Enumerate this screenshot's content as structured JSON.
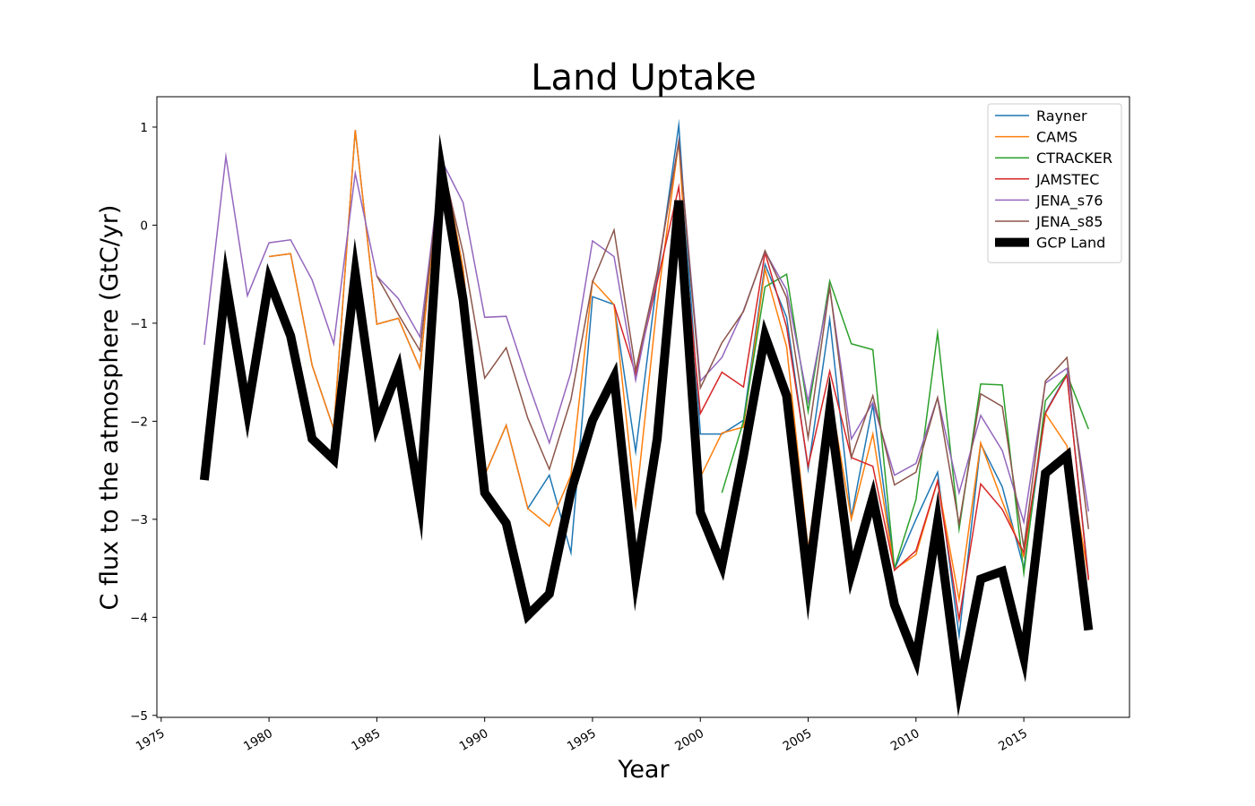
{
  "chart_data": {
    "type": "line",
    "title": "Land Uptake",
    "xlabel": "Year",
    "ylabel": "C flux to the atmosphere (GtC/yr)",
    "xlim": [
      1974.8,
      2019.9
    ],
    "ylim": [
      -5.02,
      1.31
    ],
    "xticks": [
      "1975",
      "1980",
      "1985",
      "1990",
      "1995",
      "2000",
      "2005",
      "2010",
      "2015"
    ],
    "yticks": [
      "1",
      "0",
      "−1",
      "−2",
      "−3",
      "−4",
      "−5"
    ],
    "grid": false,
    "legend_position": "top-right",
    "series": [
      {
        "name": "Rayner",
        "color": "#1f77b4",
        "width": 1.5,
        "points": [
          [
            1980,
            -0.32
          ],
          [
            1981,
            -0.29
          ],
          [
            1982,
            -1.43
          ],
          [
            1983,
            -2.08
          ],
          [
            1984,
            0.97
          ],
          [
            1985,
            -1.01
          ],
          [
            1986,
            -0.95
          ],
          [
            1987,
            -1.46
          ],
          [
            1988,
            0.73
          ],
          [
            1989,
            -0.44
          ],
          [
            1990,
            -2.55
          ],
          [
            1991,
            -2.04
          ],
          [
            1992,
            -2.89
          ],
          [
            1993,
            -2.55
          ],
          [
            1994,
            -3.34
          ],
          [
            1995,
            -0.73
          ],
          [
            1996,
            -0.81
          ],
          [
            1997,
            -2.31
          ],
          [
            1998,
            -0.55
          ],
          [
            1999,
            1.02
          ],
          [
            2000,
            -2.13
          ],
          [
            2001,
            -2.13
          ],
          [
            2002,
            -1.99
          ],
          [
            2003,
            -0.4
          ],
          [
            2004,
            -0.94
          ],
          [
            2005,
            -2.49
          ],
          [
            2006,
            -0.96
          ],
          [
            2007,
            -2.98
          ],
          [
            2008,
            -1.83
          ],
          [
            2009,
            -3.51
          ],
          [
            2010,
            -3.0
          ],
          [
            2011,
            -2.52
          ],
          [
            2012,
            -4.19
          ],
          [
            2013,
            -2.23
          ],
          [
            2014,
            -2.67
          ],
          [
            2015,
            -3.5
          ],
          [
            2016,
            -1.91
          ],
          [
            2017,
            -1.52
          ],
          [
            2018,
            -3.6
          ]
        ]
      },
      {
        "name": "CAMS",
        "color": "#ff7f0e",
        "width": 1.5,
        "points": [
          [
            1980,
            -0.32
          ],
          [
            1981,
            -0.29
          ],
          [
            1982,
            -1.43
          ],
          [
            1983,
            -2.08
          ],
          [
            1984,
            0.97
          ],
          [
            1985,
            -1.01
          ],
          [
            1986,
            -0.95
          ],
          [
            1987,
            -1.46
          ],
          [
            1988,
            0.73
          ],
          [
            1989,
            -0.44
          ],
          [
            1990,
            -2.55
          ],
          [
            1991,
            -2.04
          ],
          [
            1992,
            -2.89
          ],
          [
            1993,
            -3.07
          ],
          [
            1994,
            -2.55
          ],
          [
            1995,
            -0.57
          ],
          [
            1996,
            -0.81
          ],
          [
            1997,
            -2.86
          ],
          [
            1998,
            -0.8
          ],
          [
            1999,
            0.85
          ],
          [
            2000,
            -2.57
          ],
          [
            2001,
            -2.12
          ],
          [
            2002,
            -2.06
          ],
          [
            2003,
            -0.45
          ],
          [
            2004,
            -1.24
          ],
          [
            2005,
            -3.3
          ],
          [
            2006,
            -1.7
          ],
          [
            2007,
            -3.0
          ],
          [
            2008,
            -2.13
          ],
          [
            2009,
            -3.51
          ],
          [
            2010,
            -3.36
          ],
          [
            2011,
            -2.61
          ],
          [
            2012,
            -3.82
          ],
          [
            2013,
            -2.22
          ],
          [
            2014,
            -2.82
          ],
          [
            2015,
            -3.38
          ],
          [
            2016,
            -1.92
          ],
          [
            2017,
            -2.25
          ],
          [
            2018,
            -3.6
          ]
        ]
      },
      {
        "name": "CTRACKER",
        "color": "#2ca02c",
        "width": 1.5,
        "points": [
          [
            2001,
            -2.73
          ],
          [
            2002,
            -2.0
          ],
          [
            2003,
            -0.63
          ],
          [
            2004,
            -0.5
          ],
          [
            2005,
            -1.9
          ],
          [
            2006,
            -0.57
          ],
          [
            2007,
            -1.21
          ],
          [
            2008,
            -1.27
          ],
          [
            2009,
            -3.5
          ],
          [
            2010,
            -2.8
          ],
          [
            2011,
            -1.1
          ],
          [
            2012,
            -3.1
          ],
          [
            2013,
            -1.62
          ],
          [
            2014,
            -1.63
          ],
          [
            2015,
            -3.55
          ],
          [
            2016,
            -1.79
          ],
          [
            2017,
            -1.52
          ],
          [
            2018,
            -2.08
          ]
        ]
      },
      {
        "name": "JAMSTEC",
        "color": "#d62728",
        "width": 1.5,
        "points": [
          [
            1996,
            -0.81
          ],
          [
            1997,
            -1.52
          ],
          [
            1998,
            -0.58
          ],
          [
            1999,
            0.39
          ],
          [
            2000,
            -1.92
          ],
          [
            2001,
            -1.5
          ],
          [
            2002,
            -1.65
          ],
          [
            2003,
            -0.28
          ],
          [
            2004,
            -1.04
          ],
          [
            2005,
            -2.46
          ],
          [
            2006,
            -1.49
          ],
          [
            2007,
            -2.37
          ],
          [
            2008,
            -2.46
          ],
          [
            2009,
            -3.52
          ],
          [
            2010,
            -3.32
          ],
          [
            2011,
            -2.61
          ],
          [
            2012,
            -4.02
          ],
          [
            2013,
            -2.64
          ],
          [
            2014,
            -2.9
          ],
          [
            2015,
            -3.34
          ],
          [
            2016,
            -1.92
          ],
          [
            2017,
            -1.53
          ],
          [
            2018,
            -3.62
          ]
        ]
      },
      {
        "name": "JENA_s76",
        "color": "#9467bd",
        "width": 1.5,
        "points": [
          [
            1977,
            -1.22
          ],
          [
            1978,
            0.7
          ],
          [
            1979,
            -0.72
          ],
          [
            1980,
            -0.18
          ],
          [
            1981,
            -0.15
          ],
          [
            1982,
            -0.56
          ],
          [
            1983,
            -1.21
          ],
          [
            1984,
            0.53
          ],
          [
            1985,
            -0.52
          ],
          [
            1986,
            -0.75
          ],
          [
            1987,
            -1.14
          ],
          [
            1988,
            0.66
          ],
          [
            1989,
            0.23
          ],
          [
            1990,
            -0.94
          ],
          [
            1991,
            -0.93
          ],
          [
            1992,
            -1.6
          ],
          [
            1993,
            -2.22
          ],
          [
            1994,
            -1.5
          ],
          [
            1995,
            -0.16
          ],
          [
            1996,
            -0.32
          ],
          [
            1997,
            -1.58
          ],
          [
            1998,
            -0.5
          ],
          [
            1999,
            0.86
          ],
          [
            2000,
            -1.59
          ],
          [
            2001,
            -1.35
          ],
          [
            2002,
            -0.87
          ],
          [
            2003,
            -0.27
          ],
          [
            2004,
            -0.66
          ],
          [
            2005,
            -1.8
          ],
          [
            2006,
            -0.64
          ],
          [
            2007,
            -2.18
          ],
          [
            2008,
            -1.81
          ],
          [
            2009,
            -2.55
          ],
          [
            2010,
            -2.43
          ],
          [
            2011,
            -1.76
          ],
          [
            2012,
            -2.73
          ],
          [
            2013,
            -1.94
          ],
          [
            2014,
            -2.3
          ],
          [
            2015,
            -3.03
          ],
          [
            2016,
            -1.61
          ],
          [
            2017,
            -1.46
          ],
          [
            2018,
            -2.92
          ]
        ]
      },
      {
        "name": "JENA_s85",
        "color": "#8c564b",
        "width": 1.5,
        "points": [
          [
            1985,
            -0.52
          ],
          [
            1986,
            -0.91
          ],
          [
            1987,
            -1.28
          ],
          [
            1988,
            0.66
          ],
          [
            1989,
            -0.28
          ],
          [
            1990,
            -1.56
          ],
          [
            1991,
            -1.25
          ],
          [
            1992,
            -1.97
          ],
          [
            1993,
            -2.49
          ],
          [
            1994,
            -1.78
          ],
          [
            1995,
            -0.58
          ],
          [
            1996,
            -0.05
          ],
          [
            1997,
            -1.48
          ],
          [
            1998,
            -0.48
          ],
          [
            1999,
            0.85
          ],
          [
            2000,
            -1.66
          ],
          [
            2001,
            -1.2
          ],
          [
            2002,
            -0.88
          ],
          [
            2003,
            -0.26
          ],
          [
            2004,
            -0.74
          ],
          [
            2005,
            -2.17
          ],
          [
            2006,
            -0.63
          ],
          [
            2007,
            -2.37
          ],
          [
            2008,
            -1.74
          ],
          [
            2009,
            -2.65
          ],
          [
            2010,
            -2.52
          ],
          [
            2011,
            -1.76
          ],
          [
            2012,
            -3.05
          ],
          [
            2013,
            -1.72
          ],
          [
            2014,
            -1.85
          ],
          [
            2015,
            -3.29
          ],
          [
            2016,
            -1.59
          ],
          [
            2017,
            -1.35
          ],
          [
            2018,
            -3.1
          ]
        ]
      },
      {
        "name": "GCP Land",
        "color": "#000000",
        "width": 10,
        "points": [
          [
            1977,
            -2.6
          ],
          [
            1978,
            -0.58
          ],
          [
            1979,
            -1.9
          ],
          [
            1980,
            -0.56
          ],
          [
            1981,
            -1.13
          ],
          [
            1982,
            -2.18
          ],
          [
            1983,
            -2.39
          ],
          [
            1984,
            -0.49
          ],
          [
            1985,
            -2.04
          ],
          [
            1986,
            -1.47
          ],
          [
            1987,
            -2.82
          ],
          [
            1988,
            0.54
          ],
          [
            1989,
            -0.76
          ],
          [
            1990,
            -2.73
          ],
          [
            1991,
            -3.04
          ],
          [
            1992,
            -3.98
          ],
          [
            1993,
            -3.76
          ],
          [
            1994,
            -2.72
          ],
          [
            1995,
            -1.99
          ],
          [
            1996,
            -1.55
          ],
          [
            1997,
            -3.59
          ],
          [
            1998,
            -2.18
          ],
          [
            1999,
            0.25
          ],
          [
            2000,
            -2.93
          ],
          [
            2001,
            -3.47
          ],
          [
            2002,
            -2.35
          ],
          [
            2003,
            -1.13
          ],
          [
            2004,
            -1.74
          ],
          [
            2005,
            -3.65
          ],
          [
            2006,
            -1.89
          ],
          [
            2007,
            -3.55
          ],
          [
            2008,
            -2.78
          ],
          [
            2009,
            -3.87
          ],
          [
            2010,
            -4.43
          ],
          [
            2011,
            -3.03
          ],
          [
            2012,
            -4.73
          ],
          [
            2013,
            -3.61
          ],
          [
            2014,
            -3.53
          ],
          [
            2015,
            -4.41
          ],
          [
            2016,
            -2.53
          ],
          [
            2017,
            -2.35
          ],
          [
            2018,
            -4.13
          ]
        ]
      }
    ]
  }
}
